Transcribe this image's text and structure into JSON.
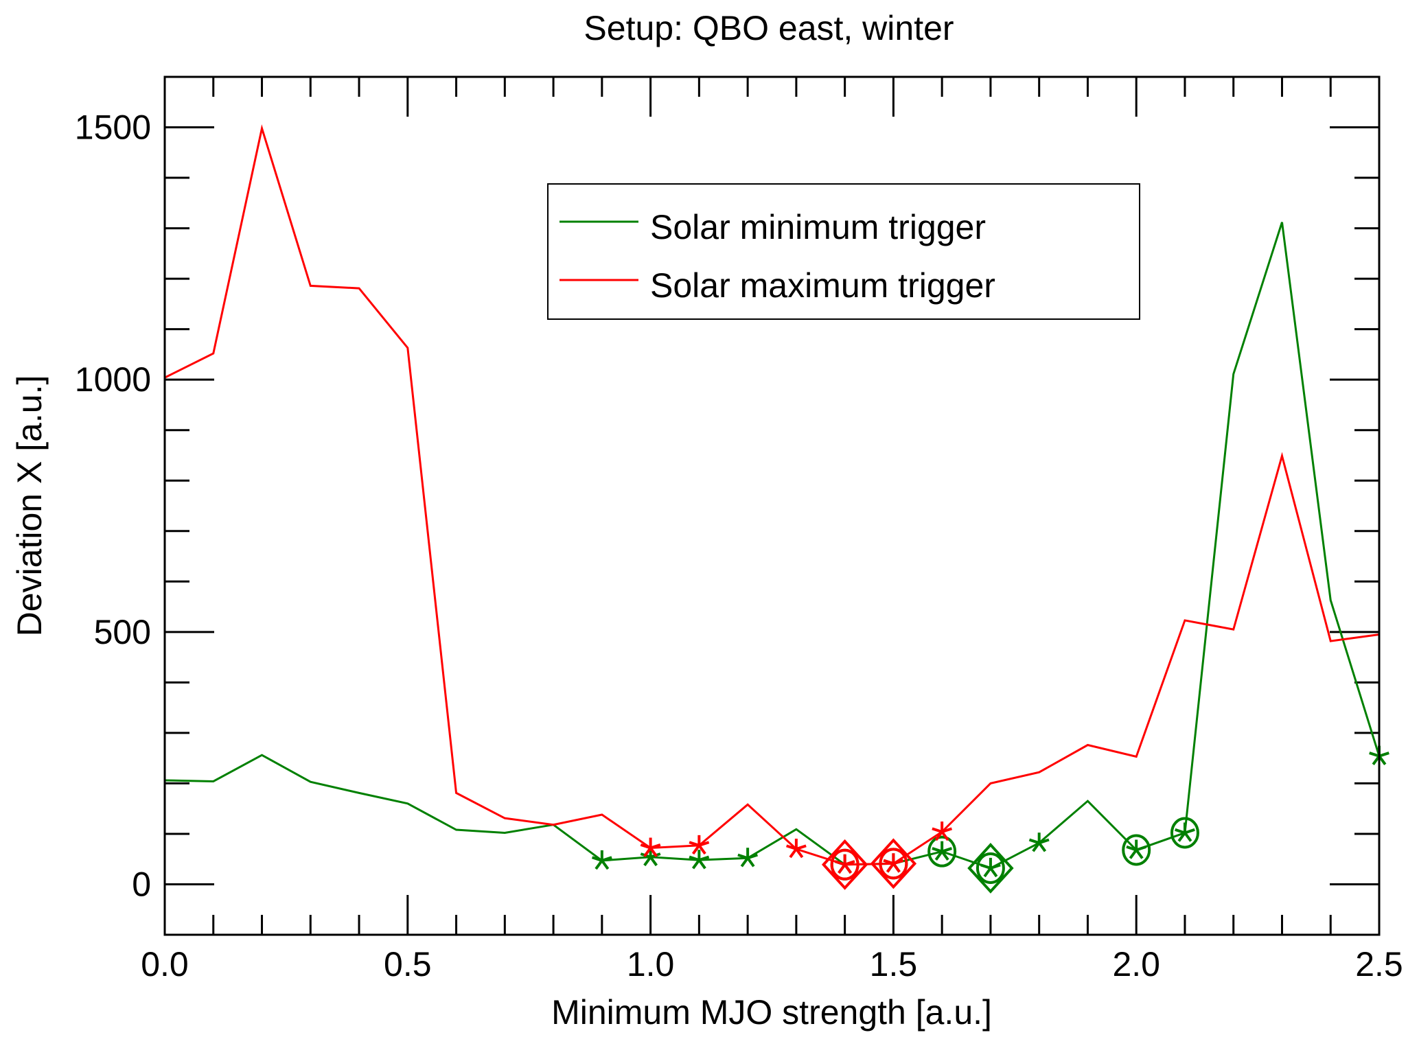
{
  "chart_data": {
    "type": "line",
    "title": "Setup: QBO east, winter",
    "xlabel": "Minimum MJO strength [a.u.]",
    "ylabel": "Deviation X [a.u.]",
    "xlim": [
      0,
      2.5
    ],
    "ylim": [
      -100,
      1600
    ],
    "x_major_ticks": [
      0.0,
      0.5,
      1.0,
      1.5,
      2.0,
      2.5
    ],
    "x_tick_labels": [
      "0.0",
      "0.5",
      "1.0",
      "1.5",
      "2.0",
      "2.5"
    ],
    "x_minor_step": 0.1,
    "y_major_ticks": [
      0,
      500,
      1000,
      1500
    ],
    "y_tick_labels": [
      "0",
      "500",
      "1000",
      "1500"
    ],
    "y_minor_step": 100,
    "grid": false,
    "legend_placement": "top-center",
    "x": [
      0.0,
      0.1,
      0.2,
      0.3,
      0.4,
      0.5,
      0.6,
      0.7,
      0.8,
      0.9,
      1.0,
      1.1,
      1.2,
      1.3,
      1.4,
      1.5,
      1.6,
      1.7,
      1.8,
      1.9,
      2.0,
      2.1,
      2.2,
      2.3,
      2.4,
      2.5
    ],
    "series": [
      {
        "name": "Solar minimum trigger",
        "color": "#008000",
        "values": [
          206,
          204,
          256,
          203,
          181,
          160,
          108,
          102,
          118,
          47,
          54,
          48,
          52,
          109,
          39,
          41,
          65,
          32,
          82,
          165,
          68,
          102,
          1011,
          1312,
          563,
          254
        ],
        "asterisk_at": [
          0.9,
          1.0,
          1.1,
          1.2,
          1.4,
          1.5,
          1.6,
          1.7,
          1.8,
          2.0,
          2.1,
          2.5
        ],
        "circle_at": [
          1.4,
          1.5,
          1.6,
          1.7,
          2.0,
          2.1
        ],
        "diamond_at": [
          1.7
        ]
      },
      {
        "name": "Solar maximum trigger",
        "color": "#ff0000",
        "values": [
          1004,
          1052,
          1498,
          1186,
          1181,
          1063,
          181,
          131,
          118,
          138,
          72,
          77,
          158,
          70,
          39,
          41,
          104,
          200,
          222,
          276,
          253,
          523,
          505,
          849,
          482,
          495
        ],
        "asterisk_at": [
          1.0,
          1.1,
          1.3,
          1.4,
          1.5,
          1.6
        ],
        "circle_at": [
          1.4,
          1.5
        ],
        "diamond_at": [
          1.4,
          1.5
        ]
      }
    ]
  }
}
